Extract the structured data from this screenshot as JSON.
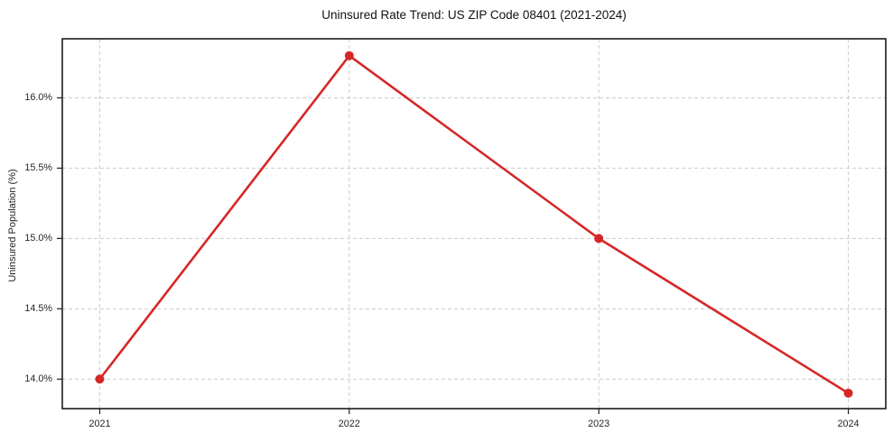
{
  "figure": {
    "background": "#ffffff"
  },
  "chart_data": {
    "type": "line",
    "title": "Uninsured Rate Trend: US ZIP Code 08401 (2021-2024)",
    "xlabel": "",
    "ylabel": "Uninsured Population (%)",
    "x": [
      2021,
      2022,
      2023,
      2024
    ],
    "x_tick_labels": [
      "2021",
      "2022",
      "2023",
      "2024"
    ],
    "values": [
      14.0,
      16.3,
      15.0,
      13.9
    ],
    "y_ticks": [
      14.0,
      14.5,
      15.0,
      15.5,
      16.0
    ],
    "y_tick_labels": [
      "14.0%",
      "14.5%",
      "15.0%",
      "15.5%",
      "16.0%"
    ],
    "xlim": [
      2020.85,
      2024.15
    ],
    "ylim": [
      13.79,
      16.42
    ],
    "grid": "both, dashed",
    "legend": "none",
    "marker": "circle",
    "colors": {
      "line": "#d62728",
      "marker": "#d62728",
      "grid": "#cccccc",
      "spine": "#1c1c1c",
      "tick_mark": "#1c1c1c",
      "tick_text": "#262626",
      "title_text": "#111111"
    }
  }
}
